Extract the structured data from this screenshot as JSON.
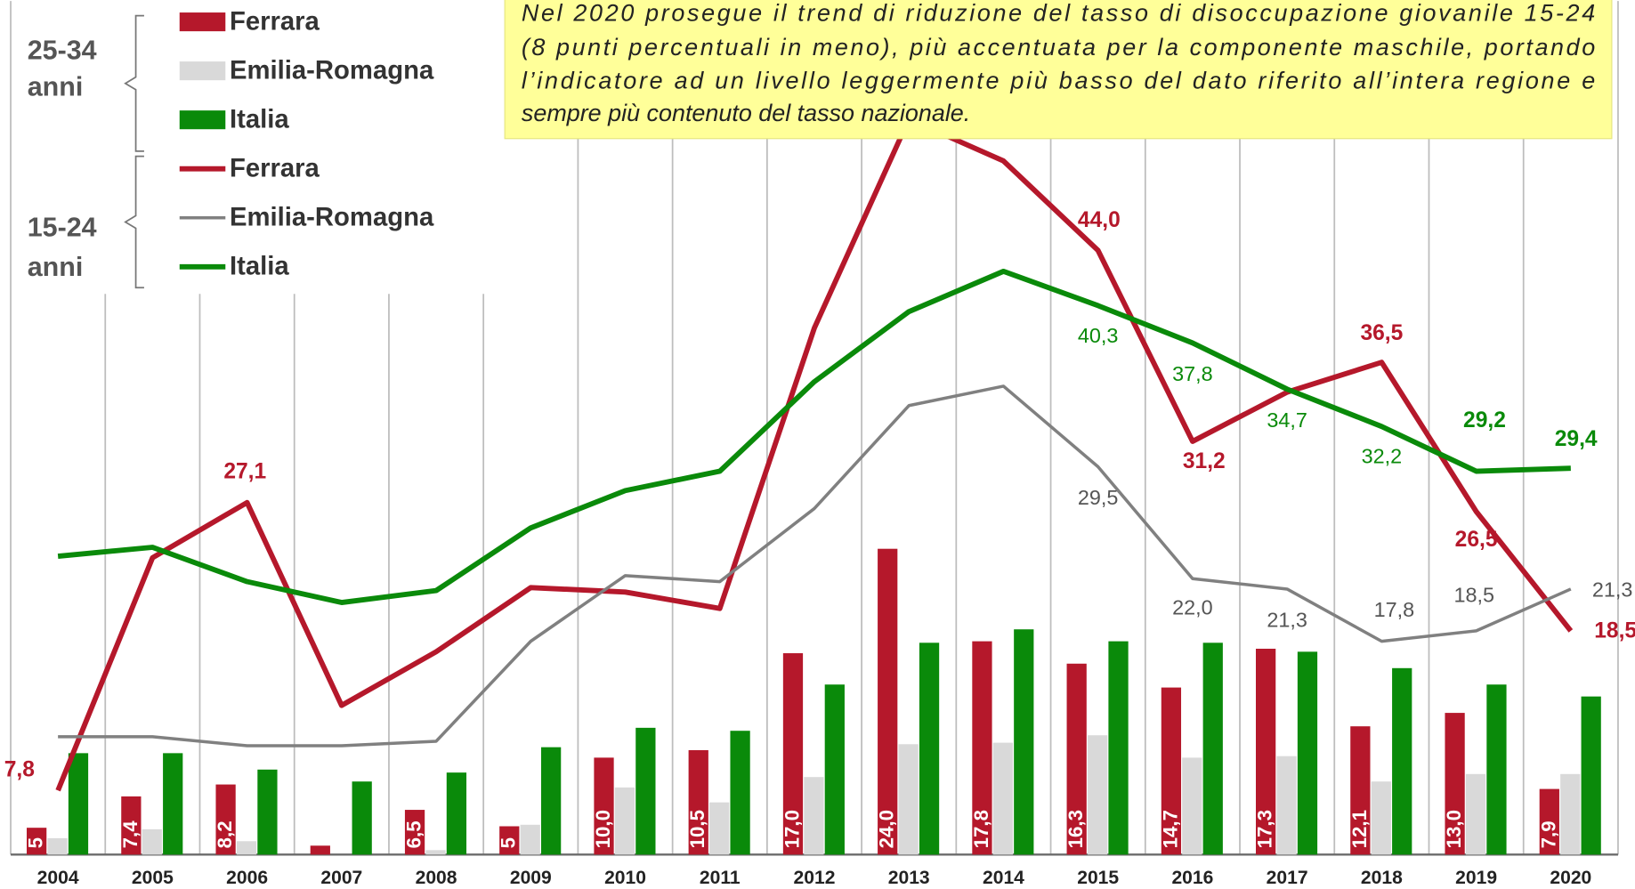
{
  "chart_data": {
    "type": "combo",
    "categories": [
      "2004",
      "2005",
      "2006",
      "2007",
      "2008",
      "2009",
      "2010",
      "2011",
      "2012",
      "2013",
      "2014",
      "2015",
      "2016",
      "2017",
      "2018",
      "2019",
      "2020"
    ],
    "ylim": [
      3.5,
      64
    ],
    "groups": [
      [
        "25-34",
        "anni"
      ],
      [
        "15-24",
        "anni"
      ]
    ],
    "annotation": [
      "Nel 2020 prosegue il trend di riduzione del tasso di  disoccupazione giovanile 15-24",
      "(8 punti percentuali in meno), più accentuata per  la componente  maschile, portando",
      "l’indicatore ad un livello leggermente più basso del dato  riferito all’intera regione e",
      "sempre  più contenuto del tasso nazionale."
    ],
    "series": [
      {
        "name": "Ferrara",
        "type": "bar",
        "group": 0,
        "color": "#b5182b",
        "values": [
          5.3,
          7.4,
          8.2,
          4.1,
          6.5,
          5.4,
          10.0,
          10.5,
          17.0,
          24.0,
          17.8,
          16.3,
          14.7,
          17.3,
          12.1,
          13.0,
          7.9
        ],
        "value_labels": [
          "5",
          "7,4",
          "8,2",
          null,
          "6,5",
          "5",
          "10,0",
          "10,5",
          "17,0",
          "24,0",
          "17,8",
          "16,3",
          "14,7",
          "17,3",
          "12,1",
          "13,0",
          "7,9"
        ]
      },
      {
        "name": "Emilia-Romagna",
        "type": "bar",
        "group": 0,
        "color": "#d9d9d9",
        "values": [
          4.6,
          5.2,
          4.4,
          3.5,
          3.8,
          5.5,
          8.0,
          7.0,
          8.7,
          10.9,
          11.0,
          11.5,
          10.0,
          10.1,
          8.4,
          8.9,
          8.9
        ]
      },
      {
        "name": "Italia",
        "type": "bar",
        "group": 0,
        "color": "#0a8a0a",
        "values": [
          10.3,
          10.3,
          9.2,
          8.4,
          9.0,
          10.7,
          12.0,
          11.8,
          14.9,
          17.7,
          18.6,
          17.8,
          17.7,
          17.1,
          16.0,
          14.9,
          14.1
        ]
      },
      {
        "name": "Ferrara",
        "type": "line",
        "group": 1,
        "color": "#b5182b",
        "values": [
          7.8,
          23.4,
          27.1,
          13.5,
          17.1,
          21.4,
          21.1,
          20.0,
          38.8,
          52.8,
          50.0,
          44.0,
          31.2,
          34.5,
          36.5,
          26.5,
          18.5
        ],
        "value_labels": [
          "7,8",
          null,
          "27,1",
          null,
          null,
          null,
          null,
          null,
          null,
          null,
          null,
          "44,0",
          "31,2",
          null,
          "36,5",
          "26,5",
          "18,5"
        ]
      },
      {
        "name": "Emilia-Romagna",
        "type": "line",
        "group": 1,
        "color": "#808080",
        "values": [
          11.4,
          11.4,
          10.8,
          10.8,
          11.1,
          17.8,
          22.2,
          21.8,
          26.7,
          33.6,
          34.9,
          29.5,
          22.0,
          21.3,
          17.8,
          18.5,
          21.3
        ],
        "value_labels": [
          null,
          null,
          null,
          null,
          null,
          null,
          null,
          null,
          null,
          null,
          null,
          "29,5",
          "22,0",
          "21,3",
          "17,8",
          "18,5",
          "21,3"
        ]
      },
      {
        "name": "Italia",
        "type": "line",
        "group": 1,
        "color": "#0a8a0a",
        "values": [
          23.5,
          24.1,
          21.8,
          20.4,
          21.2,
          25.4,
          27.9,
          29.2,
          35.2,
          39.9,
          42.6,
          40.3,
          37.8,
          34.7,
          32.2,
          29.2,
          29.4
        ],
        "value_labels": [
          null,
          null,
          null,
          null,
          null,
          null,
          null,
          null,
          null,
          null,
          null,
          "40,3",
          "37,8",
          "34,7",
          "32,2",
          "29,2",
          "29,4"
        ]
      }
    ]
  }
}
